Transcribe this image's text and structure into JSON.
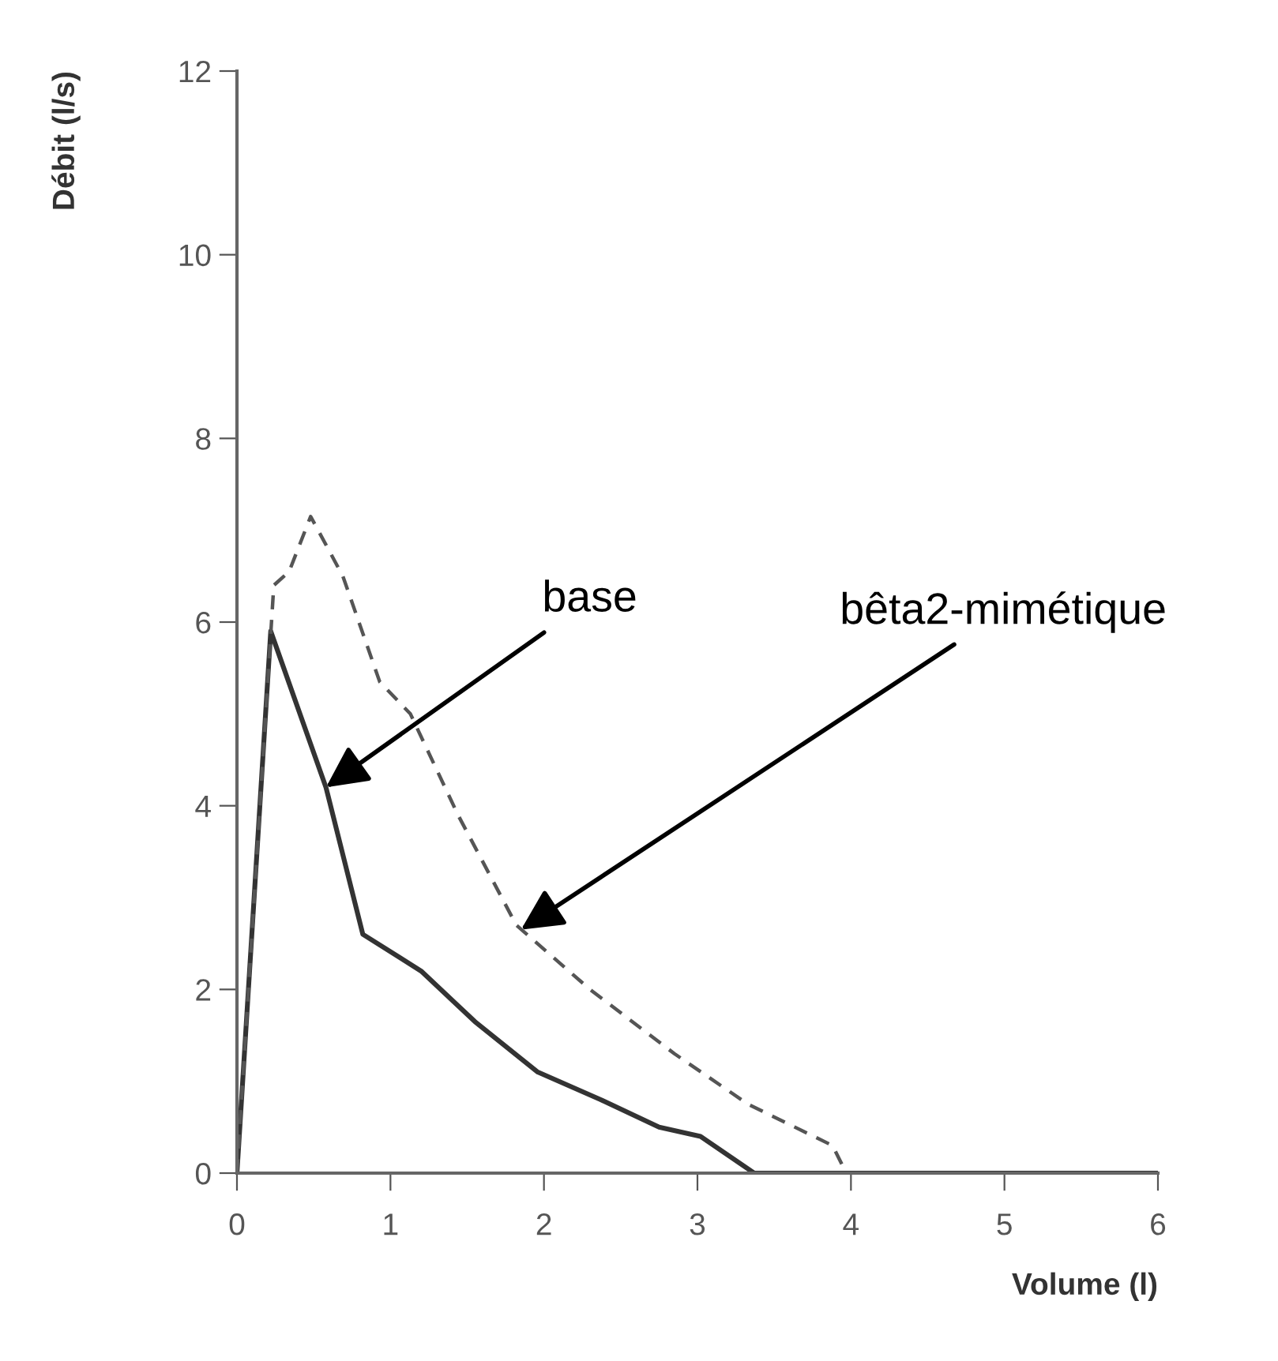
{
  "chart_data": {
    "type": "line",
    "xlabel": "Volume (l)",
    "ylabel": "Débit (l/s)",
    "xlim": [
      0,
      6
    ],
    "ylim": [
      0,
      12
    ],
    "xticks": [
      0,
      1,
      2,
      3,
      4,
      5,
      6
    ],
    "yticks": [
      0,
      2,
      4,
      6,
      8,
      10,
      12
    ],
    "grid": false,
    "legend": false,
    "marker": "none",
    "series": [
      {
        "color": "#333333",
        "line_style": "solid",
        "x": [
          0,
          0.22,
          0.58,
          0.82,
          1.2,
          1.55,
          1.96,
          2.37,
          2.75,
          3.02,
          3.37,
          6
        ],
        "values": [
          0,
          5.9,
          4.2,
          2.6,
          2.2,
          1.65,
          1.1,
          0.8,
          0.5,
          0.4,
          0,
          0
        ]
      },
      {
        "color": "#555555",
        "line_style": "dashed",
        "x": [
          0,
          0.24,
          0.34,
          0.48,
          0.69,
          0.93,
          1.13,
          1.44,
          1.82,
          2.3,
          2.85,
          3.33,
          3.88,
          3.97
        ],
        "values": [
          0,
          6.4,
          6.55,
          7.15,
          6.5,
          5.35,
          5.0,
          3.9,
          2.7,
          2.0,
          1.3,
          0.75,
          0.3,
          0
        ]
      }
    ],
    "annotations": [
      {
        "text": "base",
        "x": 0.58,
        "y": 4.2
      },
      {
        "text": "bêta2-mimétique",
        "x": 1.85,
        "y": 2.65
      }
    ]
  }
}
